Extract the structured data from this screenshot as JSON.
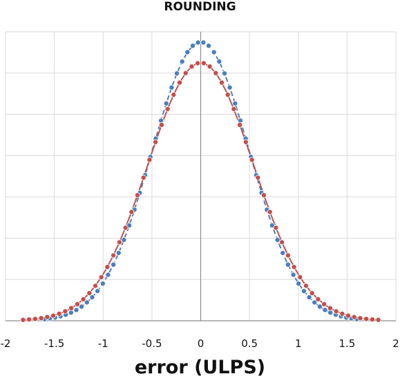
{
  "chart_data": {
    "type": "line",
    "title": "ROUNDING",
    "xlabel": "error (ULPS)",
    "ylabel": "",
    "xlim": [
      -2,
      2
    ],
    "ylim": [
      0,
      7
    ],
    "grid": true,
    "x_ticks": [
      "-2",
      "-1.5",
      "-1",
      "-0.5",
      "0",
      "0.5",
      "1",
      "1.5",
      "2"
    ],
    "series": [
      {
        "color": "#4a7ebf",
        "marker": "circle",
        "line_style": "dashed",
        "sigma": 0.5,
        "peak": 6.75,
        "x_min": -1.6,
        "x_max": 1.6,
        "n_points": 60
      },
      {
        "color": "#c0504d",
        "marker": "circle",
        "line_style": "solid",
        "sigma": 0.54,
        "peak": 6.25,
        "x_min": -1.82,
        "x_max": 1.82,
        "n_points": 60
      }
    ]
  }
}
